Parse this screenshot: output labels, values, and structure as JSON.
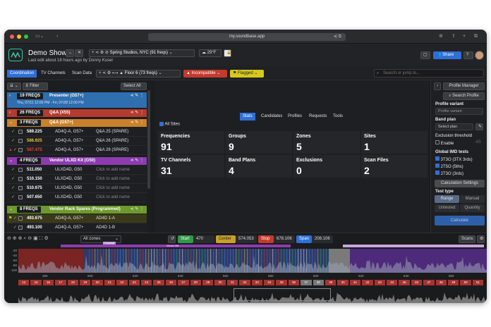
{
  "browser": {
    "url": "my.soundbase.app"
  },
  "app": {
    "show_title": "Demo Show",
    "last_edit": "Last edit about 18 hours ago by Donny Kuser",
    "venue": "Spring Studios, NYC (91 freqs)",
    "temp": "29°F",
    "share_label": "Share"
  },
  "toolbar": {
    "tabs": [
      "Coordination",
      "TV Channels",
      "Scan Data"
    ],
    "floor": "Floor 6 (73 freqs)",
    "incompatible": "Incompatible",
    "flagged": "Flagged",
    "search_placeholder": "Search or jump to..."
  },
  "left": {
    "filter": "Filter",
    "select_all": "Select All",
    "groups": [
      {
        "badge": "19 FREQS",
        "name": "Presenter (G57+)",
        "sub": "Thu, 07/11 12:00 PM - Fri, 07/28 12:00 PM",
        "color": "#2f6fb0"
      },
      {
        "badge": "26 FREQS",
        "name": "Q&A (X55)",
        "color": "#b33b30"
      },
      {
        "badge": "3 FREQS",
        "name": "Q&A (G57+)",
        "color": "#c9822a"
      },
      {
        "badge": "4 FREQS",
        "name": "Vendor ULXD Kit (G50)",
        "color": "#8d3bb0"
      },
      {
        "badge": "8 FREQS",
        "name": "Vendor Rack Spares (Programmed)",
        "color": "#6d9a2c"
      }
    ],
    "rows_qa": [
      {
        "freq": "589.225",
        "model": "AD4Q-A, G57+",
        "name": "Q&A 25 (SPARE)"
      },
      {
        "freq": "586.925",
        "model": "AD4Q-A, G57+",
        "name": "Q&A 26 (SPARE)"
      },
      {
        "freq": "587.475",
        "model": "AD4Q-A, G57+",
        "name": "Q&A 28 (SPARE)"
      }
    ],
    "rows_vendor": [
      {
        "freq": "511.050",
        "model": "ULXD4D, G50",
        "name": "Click to add name"
      },
      {
        "freq": "510.150",
        "model": "ULXD4D, G50",
        "name": "Click to add name"
      },
      {
        "freq": "510.675",
        "model": "ULXD4D, G50",
        "name": "Click to add name"
      },
      {
        "freq": "507.650",
        "model": "ULXD4D, G50",
        "name": "Click to add name"
      }
    ],
    "rows_spares": [
      {
        "freq": "493.675",
        "model": "AD4Q-A, G57+",
        "name": "AD4D 1-A"
      },
      {
        "freq": "493.100",
        "model": "AD4Q-A, G57+",
        "name": "AD4D 1-B"
      }
    ]
  },
  "center": {
    "all_sites": "All Sites",
    "tabs": [
      "Stats",
      "Candidates",
      "Profiles",
      "Requests",
      "Tools"
    ],
    "cards": [
      {
        "label": "Frequencies",
        "value": "91"
      },
      {
        "label": "Groups",
        "value": "9"
      },
      {
        "label": "Zones",
        "value": "5"
      },
      {
        "label": "Sites",
        "value": "1"
      },
      {
        "label": "TV Channels",
        "value": "31"
      },
      {
        "label": "Band Plans",
        "value": "4"
      },
      {
        "label": "Exclusions",
        "value": "0"
      },
      {
        "label": "Scan Files",
        "value": "2"
      }
    ]
  },
  "right": {
    "profile_manager": "Profile Manager",
    "search_profile": "Search Profile",
    "profile_variant_label": "Profile variant",
    "profile_variant_ph": "Profile variant",
    "band_plan_label": "Band plan",
    "band_plan_ph": "Select plan",
    "exclusion_label": "Exclusion threshold",
    "enable": "Enable",
    "threshold": "-85",
    "imd_label": "Global IMD tests",
    "imd": [
      "3T3O (3TX 3rds)",
      "2T5O (5ths)",
      "2T3O (3rds)"
    ],
    "calc_settings": "Calculation Settings",
    "test_type": "Test type",
    "range": "Range",
    "manual": "Manual",
    "untested": "Untested",
    "quantity": "Quantity",
    "calculate": "Calculate"
  },
  "bottom": {
    "zones": "All zones",
    "start_label": "Start",
    "start": "470",
    "center_label": "Center",
    "center": "574.053",
    "stop_label": "Stop",
    "stop": "678.106",
    "span_label": "Span",
    "span": "208.106",
    "scans": "Scans",
    "y_ticks": [
      "-20",
      "-40",
      "-60",
      "-80",
      "-100"
    ],
    "x_ticks": [
      "480",
      "500",
      "520",
      "540",
      "560",
      "580",
      "600",
      "620",
      "640",
      "660"
    ],
    "channels": [
      "14",
      "15",
      "16",
      "17",
      "18",
      "19",
      "20",
      "21",
      "22",
      "23",
      "24",
      "25",
      "26",
      "27",
      "28",
      "29",
      "30",
      "31",
      "32",
      "33",
      "34",
      "35",
      "36",
      "37",
      "38",
      "39",
      "40",
      "41",
      "42",
      "43",
      "44",
      "45",
      "46",
      "47",
      "48",
      "49",
      "50",
      "51"
    ],
    "band_labels": [
      "Presenter",
      "Vendor Mix"
    ]
  }
}
